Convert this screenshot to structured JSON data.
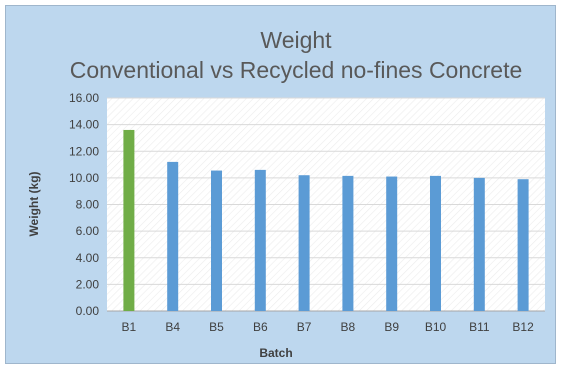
{
  "chart_data": {
    "type": "bar",
    "title": "Weight",
    "subtitle": "Conventional vs Recycled no-fines Concrete",
    "xlabel": "Batch",
    "ylabel": "Weight (kg)",
    "ylim": [
      0,
      16
    ],
    "yticks": [
      "0.00",
      "2.00",
      "4.00",
      "6.00",
      "8.00",
      "10.00",
      "12.00",
      "14.00",
      "16.00"
    ],
    "categories": [
      "B1",
      "B4",
      "B5",
      "B6",
      "B7",
      "B8",
      "B9",
      "B10",
      "B11",
      "B12"
    ],
    "values": [
      13.6,
      11.2,
      10.55,
      10.6,
      10.2,
      10.15,
      10.1,
      10.15,
      10.0,
      9.9
    ],
    "bar_colors": [
      "#70ad47",
      "#5b9bd5",
      "#5b9bd5",
      "#5b9bd5",
      "#5b9bd5",
      "#5b9bd5",
      "#5b9bd5",
      "#5b9bd5",
      "#5b9bd5",
      "#5b9bd5"
    ],
    "grid": true,
    "legend": "none"
  }
}
